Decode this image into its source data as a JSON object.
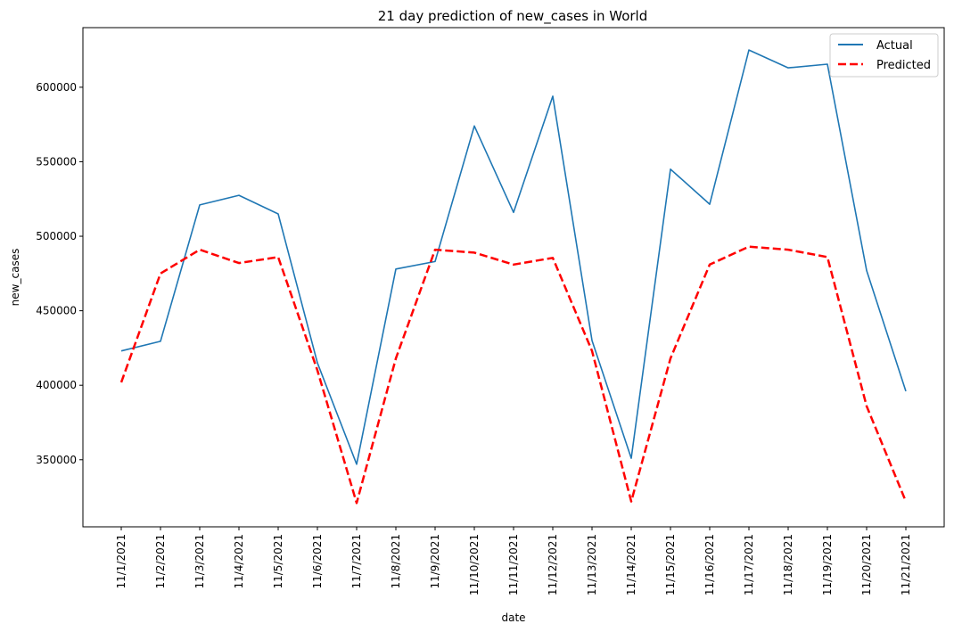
{
  "chart_data": {
    "type": "line",
    "title": "21 day prediction of new_cases in World",
    "xlabel": "date",
    "ylabel": "new_cases",
    "categories": [
      "11/1/2021",
      "11/2/2021",
      "11/3/2021",
      "11/4/2021",
      "11/5/2021",
      "11/6/2021",
      "11/7/2021",
      "11/8/2021",
      "11/9/2021",
      "11/10/2021",
      "11/11/2021",
      "11/12/2021",
      "11/13/2021",
      "11/14/2021",
      "11/15/2021",
      "11/16/2021",
      "11/17/2021",
      "11/18/2021",
      "11/19/2021",
      "11/20/2021",
      "11/21/2021"
    ],
    "yticks": [
      350000,
      400000,
      450000,
      500000,
      550000,
      600000
    ],
    "ytick_labels": [
      "350000",
      "400000",
      "450000",
      "500000",
      "550000",
      "600000"
    ],
    "ylim": [
      305000,
      640000
    ],
    "legend_position": "top-right",
    "grid": false,
    "series": [
      {
        "name": "Actual",
        "color": "#1f77b4",
        "style": "solid",
        "values": [
          423000,
          429500,
          521000,
          527500,
          515000,
          415000,
          347000,
          478000,
          483000,
          574000,
          516000,
          594000,
          430000,
          351000,
          545000,
          521500,
          625000,
          613000,
          615500,
          477000,
          396000
        ]
      },
      {
        "name": "Predicted",
        "color": "#ff0000",
        "style": "dashed",
        "values": [
          402000,
          475000,
          491000,
          482000,
          486000,
          410000,
          321000,
          418000,
          491000,
          489000,
          481000,
          485500,
          423000,
          322000,
          418000,
          481000,
          493000,
          491000,
          486000,
          386000,
          322000
        ]
      }
    ]
  }
}
